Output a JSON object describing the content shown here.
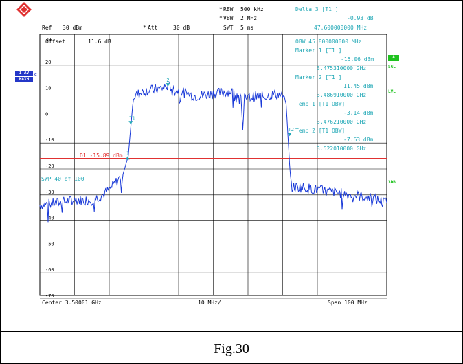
{
  "caption": "Fig.30",
  "header": {
    "ref_label": "Ref",
    "ref_value": "30 dBm",
    "att_label": "Att",
    "att_value": "30 dB",
    "rbw_label": "RBW",
    "rbw_value": "500 kHz",
    "vbw_label": "VBW",
    "vbw_value": "2 MHz",
    "swt_label": "SWT",
    "swt_value": "5 ms"
  },
  "delta_marker": {
    "title": "Delta 3 [T1 ]",
    "level": "-0.93 dB",
    "freq": "47.600000000 MHz"
  },
  "offset_label": "Offset",
  "offset_value": "11.6 dB",
  "obw_panel": [
    "OBW 45.800000000 MHz",
    "Marker 1 [T1 ]",
    "-15.06 dBm",
    "3.475310000 GHz",
    "Marker 2 [T1 ]",
    "11.45 dBm",
    "3.486910000 GHz",
    "Temp 1 [T1 OBW]",
    "-3.14 dBm",
    "3.476210000 GHz",
    "Temp 2 [T1 OBW]",
    "-7.63 dBm",
    "3.522010000 GHz"
  ],
  "left_tags": {
    "trace_1": "1 AV",
    "trace_2": "MAXH"
  },
  "right_tags": {
    "a": "A",
    "sgl": "SGL",
    "lvl": "LVL",
    "3db": "3DB"
  },
  "display_line": "D1 -15.89 dBm",
  "sweep_text": "SWP   40 of 100",
  "marker_labels": [
    "1",
    "2",
    "T1",
    "T2"
  ],
  "footer": {
    "center": "Center  3.50001 GHz",
    "div": "10 MHz/",
    "span": "Span  100 MHz"
  },
  "chart_data": {
    "type": "line",
    "xlabel": "",
    "ylabel": "",
    "y_tick_labels": [
      "30",
      "20",
      "10",
      "0",
      "-10",
      "-20",
      "-30",
      "-40",
      "-50",
      "-60",
      "-70"
    ],
    "ylim": [
      -75,
      30
    ],
    "xlim": [
      3.45001,
      3.55001
    ],
    "grid": true,
    "display_line_dbm": -15.89,
    "series": [
      {
        "x": [
          3.45001,
          3.455,
          3.46,
          3.465,
          3.468,
          3.47,
          3.472,
          3.474,
          3.4755,
          3.477,
          3.48,
          3.485,
          3.487,
          3.49,
          3.495,
          3.5,
          3.505,
          3.508,
          3.5085,
          3.509,
          3.512,
          3.515,
          3.518,
          3.52,
          3.521,
          3.522,
          3.5225,
          3.525,
          3.53,
          3.535,
          3.54,
          3.545,
          3.55001
        ],
        "values": [
          -34,
          -33,
          -32,
          -32,
          -30,
          -28,
          -25,
          -22,
          -15,
          8,
          10,
          11,
          12,
          10,
          8,
          9,
          10,
          8,
          -5,
          7,
          8,
          8,
          9,
          8,
          5,
          -18,
          -27,
          -27,
          -28,
          -29,
          -30,
          -31,
          -33
        ]
      }
    ]
  }
}
